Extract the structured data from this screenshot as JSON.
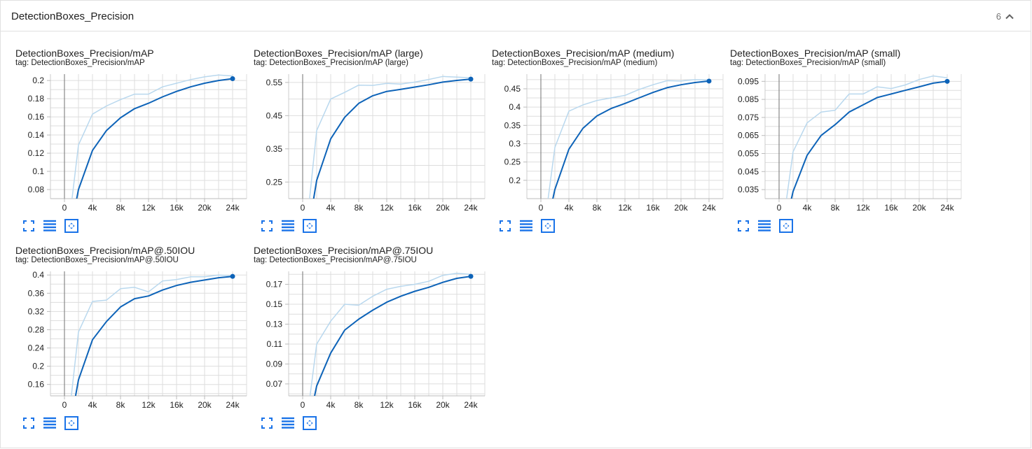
{
  "section": {
    "title": "DetectionBoxes_Precision",
    "count": "6"
  },
  "colors": {
    "smoothed": "#0d63b8",
    "raw": "#b9d8ee",
    "grid": "#dddddd",
    "icon": "#1a73e8"
  },
  "icons": [
    "fullscreen-icon",
    "data-table-icon",
    "fit-domain-icon",
    "chevron-up-icon"
  ],
  "chart_data": [
    {
      "type": "line",
      "title": "DetectionBoxes_Precision/mAP",
      "tag": "tag: DetectionBoxes_Precision/mAP",
      "x": [
        0,
        2000,
        4000,
        6000,
        8000,
        10000,
        12000,
        14000,
        16000,
        18000,
        20000,
        22000,
        24000
      ],
      "xticks": [
        0,
        4000,
        8000,
        12000,
        16000,
        20000,
        24000
      ],
      "xtick_labels": [
        "0",
        "4k",
        "8k",
        "12k",
        "16k",
        "20k",
        "24k"
      ],
      "xlim": [
        -2000,
        26000
      ],
      "ylim": [
        0.07,
        0.207
      ],
      "yticks": [
        0.08,
        0.1,
        0.12,
        0.14,
        0.16,
        0.18,
        0.2
      ],
      "ytick_labels": [
        "0.08",
        "0.1",
        "0.12",
        "0.14",
        "0.16",
        "0.18",
        "0.2"
      ],
      "grid": true,
      "series": [
        {
          "values": [
            0.0,
            0.129,
            0.163,
            0.172,
            0.179,
            0.185,
            0.185,
            0.193,
            0.197,
            0.201,
            0.204,
            0.206,
            0.205
          ]
        },
        {
          "values": [
            0.0,
            0.08,
            0.123,
            0.145,
            0.159,
            0.169,
            0.175,
            0.182,
            0.188,
            0.193,
            0.197,
            0.2,
            0.202
          ]
        }
      ]
    },
    {
      "type": "line",
      "title": "DetectionBoxes_Precision/mAP (large)",
      "tag": "tag: DetectionBoxes_Precision/mAP (large)",
      "x": [
        0,
        2000,
        4000,
        6000,
        8000,
        10000,
        12000,
        14000,
        16000,
        18000,
        20000,
        22000,
        24000
      ],
      "xticks": [
        0,
        4000,
        8000,
        12000,
        16000,
        20000,
        24000
      ],
      "xtick_labels": [
        "0",
        "4k",
        "8k",
        "12k",
        "16k",
        "20k",
        "24k"
      ],
      "xlim": [
        -2000,
        26000
      ],
      "ylim": [
        0.2,
        0.575
      ],
      "yticks": [
        0.25,
        0.35,
        0.45,
        0.55
      ],
      "ytick_labels": [
        "0.25",
        "0.35",
        "0.45",
        "0.55"
      ],
      "grid": true,
      "series": [
        {
          "values": [
            0.0,
            0.405,
            0.5,
            0.52,
            0.542,
            0.541,
            0.547,
            0.545,
            0.551,
            0.559,
            0.568,
            0.566,
            0.564
          ]
        },
        {
          "values": [
            0.0,
            0.255,
            0.38,
            0.445,
            0.487,
            0.51,
            0.523,
            0.529,
            0.536,
            0.543,
            0.551,
            0.556,
            0.56
          ]
        }
      ]
    },
    {
      "type": "line",
      "title": "DetectionBoxes_Precision/mAP (medium)",
      "tag": "tag: DetectionBoxes_Precision/mAP (medium)",
      "x": [
        0,
        2000,
        4000,
        6000,
        8000,
        10000,
        12000,
        14000,
        16000,
        18000,
        20000,
        22000,
        24000
      ],
      "xticks": [
        0,
        4000,
        8000,
        12000,
        16000,
        20000,
        24000
      ],
      "xtick_labels": [
        "0",
        "4k",
        "8k",
        "12k",
        "16k",
        "20k",
        "24k"
      ],
      "xlim": [
        -2000,
        26000
      ],
      "ylim": [
        0.15,
        0.49
      ],
      "yticks": [
        0.2,
        0.25,
        0.3,
        0.35,
        0.4,
        0.45
      ],
      "ytick_labels": [
        "0.2",
        "0.25",
        "0.3",
        "0.35",
        "0.4",
        "0.45"
      ],
      "grid": true,
      "series": [
        {
          "values": [
            0.0,
            0.29,
            0.389,
            0.406,
            0.418,
            0.425,
            0.432,
            0.448,
            0.461,
            0.472,
            0.471,
            0.475,
            0.474
          ]
        },
        {
          "values": [
            0.0,
            0.175,
            0.285,
            0.342,
            0.376,
            0.396,
            0.41,
            0.425,
            0.44,
            0.453,
            0.461,
            0.467,
            0.471
          ]
        }
      ]
    },
    {
      "type": "line",
      "title": "DetectionBoxes_Precision/mAP (small)",
      "tag": "tag: DetectionBoxes_Precision/mAP (small)",
      "x": [
        0,
        2000,
        4000,
        6000,
        8000,
        10000,
        12000,
        14000,
        16000,
        18000,
        20000,
        22000,
        24000
      ],
      "xticks": [
        0,
        4000,
        8000,
        12000,
        16000,
        20000,
        24000
      ],
      "xtick_labels": [
        "0",
        "4k",
        "8k",
        "12k",
        "16k",
        "20k",
        "24k"
      ],
      "xlim": [
        -2000,
        26000
      ],
      "ylim": [
        0.03,
        0.099
      ],
      "yticks": [
        0.035,
        0.045,
        0.055,
        0.065,
        0.075,
        0.085,
        0.095
      ],
      "ytick_labels": [
        "0.035",
        "0.045",
        "0.055",
        "0.065",
        "0.075",
        "0.085",
        "0.095"
      ],
      "grid": true,
      "series": [
        {
          "values": [
            0.0,
            0.056,
            0.072,
            0.078,
            0.079,
            0.088,
            0.088,
            0.092,
            0.091,
            0.093,
            0.096,
            0.098,
            0.097
          ]
        },
        {
          "values": [
            0.0,
            0.034,
            0.054,
            0.065,
            0.071,
            0.078,
            0.082,
            0.086,
            0.088,
            0.09,
            0.092,
            0.094,
            0.095
          ]
        }
      ]
    },
    {
      "type": "line",
      "title": "DetectionBoxes_Precision/mAP@.50IOU",
      "tag": "tag: DetectionBoxes_Precision/mAP@.50IOU",
      "x": [
        0,
        2000,
        4000,
        6000,
        8000,
        10000,
        12000,
        14000,
        16000,
        18000,
        20000,
        22000,
        24000
      ],
      "xticks": [
        0,
        4000,
        8000,
        12000,
        16000,
        20000,
        24000
      ],
      "xtick_labels": [
        "0",
        "4k",
        "8k",
        "12k",
        "16k",
        "20k",
        "24k"
      ],
      "xlim": [
        -2000,
        26000
      ],
      "ylim": [
        0.135,
        0.408
      ],
      "yticks": [
        0.16,
        0.2,
        0.24,
        0.28,
        0.32,
        0.36,
        0.4
      ],
      "ytick_labels": [
        "0.16",
        "0.2",
        "0.24",
        "0.28",
        "0.32",
        "0.36",
        "0.4"
      ],
      "grid": true,
      "series": [
        {
          "values": [
            0.0,
            0.275,
            0.342,
            0.345,
            0.37,
            0.373,
            0.363,
            0.387,
            0.39,
            0.396,
            0.396,
            0.4,
            0.398
          ]
        },
        {
          "values": [
            0.0,
            0.17,
            0.258,
            0.298,
            0.33,
            0.348,
            0.354,
            0.367,
            0.377,
            0.384,
            0.389,
            0.394,
            0.397
          ]
        }
      ]
    },
    {
      "type": "line",
      "title": "DetectionBoxes_Precision/mAP@.75IOU",
      "tag": "tag: DetectionBoxes_Precision/mAP@.75IOU",
      "x": [
        0,
        2000,
        4000,
        6000,
        8000,
        10000,
        12000,
        14000,
        16000,
        18000,
        20000,
        22000,
        24000
      ],
      "xticks": [
        0,
        4000,
        8000,
        12000,
        16000,
        20000,
        24000
      ],
      "xtick_labels": [
        "0",
        "4k",
        "8k",
        "12k",
        "16k",
        "20k",
        "24k"
      ],
      "xlim": [
        -2000,
        26000
      ],
      "ylim": [
        0.058,
        0.183
      ],
      "yticks": [
        0.07,
        0.09,
        0.11,
        0.13,
        0.15,
        0.17
      ],
      "ytick_labels": [
        "0.07",
        "0.09",
        "0.11",
        "0.13",
        "0.15",
        "0.17"
      ],
      "grid": true,
      "series": [
        {
          "values": [
            0.0,
            0.11,
            0.133,
            0.15,
            0.149,
            0.158,
            0.165,
            0.168,
            0.17,
            0.173,
            0.179,
            0.181,
            0.18
          ]
        },
        {
          "values": [
            0.0,
            0.068,
            0.101,
            0.124,
            0.135,
            0.144,
            0.152,
            0.158,
            0.163,
            0.167,
            0.172,
            0.176,
            0.178
          ]
        }
      ]
    }
  ]
}
